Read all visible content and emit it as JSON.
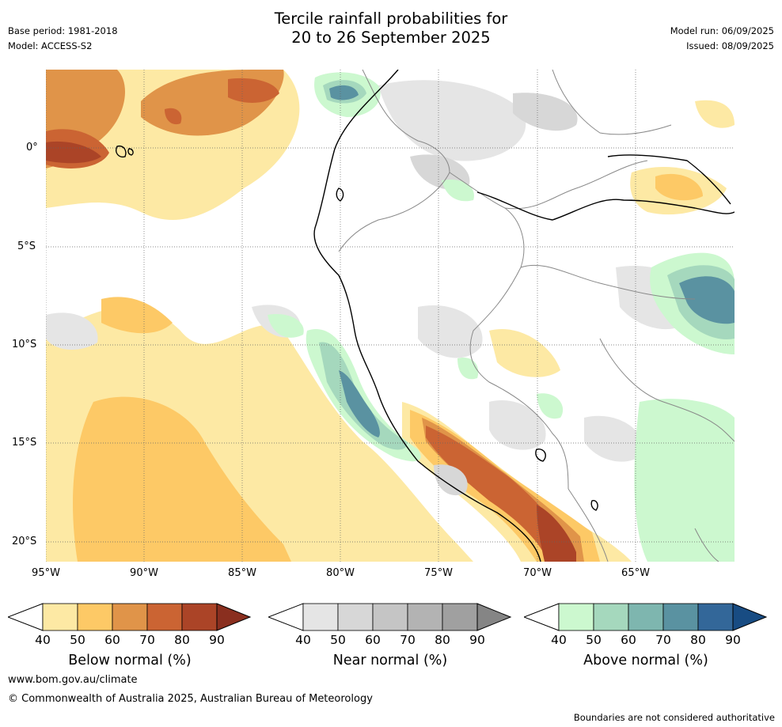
{
  "header": {
    "title_line1": "Tercile rainfall probabilities for",
    "title_line2": "20 to 26 September 2025",
    "base_period": "Base period: 1981-2018",
    "model": "Model: ACCESS-S2",
    "model_run": "Model run: 06/09/2025",
    "issued": "Issued: 08/09/2025"
  },
  "map": {
    "lat_labels": [
      "0°",
      "5°S",
      "10°S",
      "15°S",
      "20°S"
    ],
    "lon_labels": [
      "95°W",
      "90°W",
      "85°W",
      "80°W",
      "75°W",
      "70°W",
      "65°W"
    ],
    "regions": {
      "below": "Pacific Ocean west of South America, Peruvian Andes, northern equatorial Pacific",
      "near": "Amazon basin interior",
      "above": "Peru coast offshore band, western Brazil"
    }
  },
  "colorbars": [
    {
      "title": "Below normal (%)",
      "ticks": [
        "40",
        "50",
        "60",
        "70",
        "80",
        "90"
      ],
      "colors": [
        "#fde9a4",
        "#fdc966",
        "#e09449",
        "#cb6433",
        "#ab4427",
        "#8a2f1f"
      ]
    },
    {
      "title": "Near normal (%)",
      "ticks": [
        "40",
        "50",
        "60",
        "70",
        "80",
        "90"
      ],
      "colors": [
        "#e5e5e5",
        "#d7d7d7",
        "#c5c5c5",
        "#b3b3b3",
        "#a0a0a0",
        "#858585"
      ]
    },
    {
      "title": "Above normal (%)",
      "ticks": [
        "40",
        "50",
        "60",
        "70",
        "80",
        "90"
      ],
      "colors": [
        "#ccf8cf",
        "#a5d8bd",
        "#7eb6af",
        "#5a92a1",
        "#336799",
        "#184c83"
      ]
    }
  ],
  "footer": {
    "website": "www.bom.gov.au/climate",
    "copyright": "© Commonwealth of Australia 2025, Australian Bureau of Meteorology",
    "disclaimer": "Boundaries are not considered authoritative"
  }
}
